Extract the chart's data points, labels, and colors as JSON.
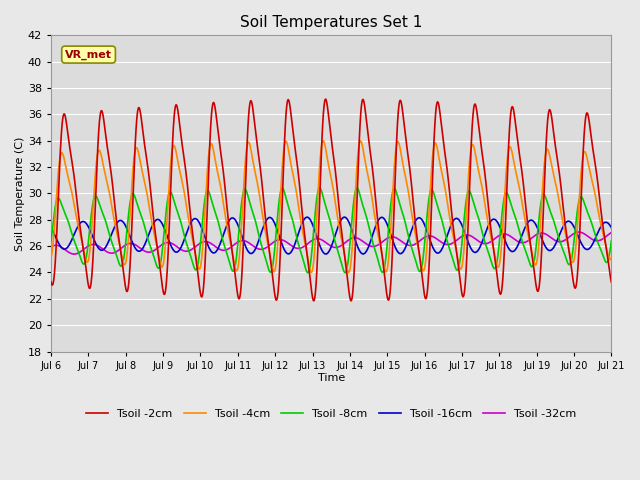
{
  "title": "Soil Temperatures Set 1",
  "xlabel": "Time",
  "ylabel": "Soil Temperature (C)",
  "ylim": [
    18,
    42
  ],
  "yticks": [
    18,
    20,
    22,
    24,
    26,
    28,
    30,
    32,
    34,
    36,
    38,
    40,
    42
  ],
  "xlim": [
    0,
    360
  ],
  "xtick_labels": [
    "Jul 6",
    "Jul 7",
    "Jul 8",
    "Jul 9",
    "Jul 10",
    "Jul 11",
    "Jul 12",
    "Jul 13",
    "Jul 14",
    "Jul 15",
    "Jul 16",
    "Jul 17",
    "Jul 18",
    "Jul 19",
    "Jul 20",
    "Jul 21"
  ],
  "xtick_positions": [
    0,
    24,
    48,
    72,
    96,
    120,
    144,
    168,
    192,
    216,
    240,
    264,
    288,
    312,
    336,
    360
  ],
  "series": {
    "Tsoil -2cm": {
      "color": "#cc0000",
      "lw": 1.2
    },
    "Tsoil -4cm": {
      "color": "#ff8800",
      "lw": 1.2
    },
    "Tsoil -8cm": {
      "color": "#00cc00",
      "lw": 1.2
    },
    "Tsoil -16cm": {
      "color": "#0000cc",
      "lw": 1.2
    },
    "Tsoil -32cm": {
      "color": "#cc00cc",
      "lw": 1.2
    }
  },
  "bg_color": "#dcdcdc",
  "grid_color": "#ffffff",
  "fig_bg": "#e8e8e8",
  "annotation_text": "VR_met",
  "annotation_color": "#990000",
  "annotation_bg": "#ffffaa",
  "annotation_edge": "#888800"
}
